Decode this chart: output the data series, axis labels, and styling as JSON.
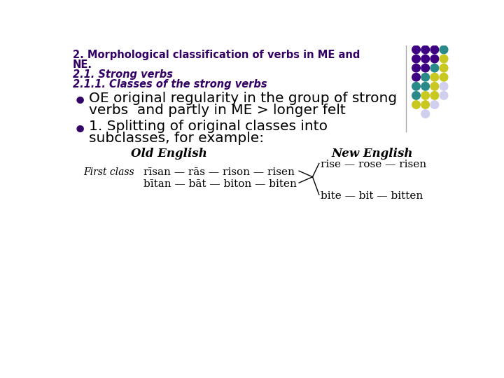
{
  "bg_color": "#ffffff",
  "title_line1": "2. Morphological classification of verbs in ME and",
  "title_line2": "NE.",
  "subtitle1": "2.1. Strong verbs",
  "subtitle2": "2.1.1. Classes of the strong verbs",
  "bullet1_line1": "OE original regularity in the group of strong",
  "bullet1_line2": "verbs  and partly in ME > longer felt",
  "bullet2_line1": "1. Splitting of original classes into",
  "bullet2_line2": "subclasses, for example:",
  "old_english_label": "Old English",
  "new_english_label": "New English",
  "first_class_label": "First class",
  "oe_row1": "rīsan — rās — rison — risen",
  "oe_row2": "bītan — bāt — biton — biten",
  "ne_row1": "rise — rose — risen",
  "ne_row2": "bite — bit — bitten",
  "title_color": "#330066",
  "subtitle_color": "#330066",
  "text_color": "#000000",
  "dot_grid": [
    [
      "#3d0082",
      "#3d0082",
      "#3d0082",
      "#2a8a8a"
    ],
    [
      "#3d0082",
      "#3d0082",
      "#3d0082",
      "#c8c820"
    ],
    [
      "#3d0082",
      "#3d0082",
      "#2a8a8a",
      "#c8c820"
    ],
    [
      "#3d0082",
      "#2a8a8a",
      "#c8c820",
      "#c8c820"
    ],
    [
      "#2a8a8a",
      "#2a8a8a",
      "#c8c820",
      "#d0d0ee"
    ],
    [
      "#2a8a8a",
      "#c8c820",
      "#c8c820",
      "#d0d0ee"
    ],
    [
      "#c8c820",
      "#c8c820",
      "#d0d0ee",
      null
    ],
    [
      null,
      "#d0d0ee",
      null,
      null
    ]
  ]
}
